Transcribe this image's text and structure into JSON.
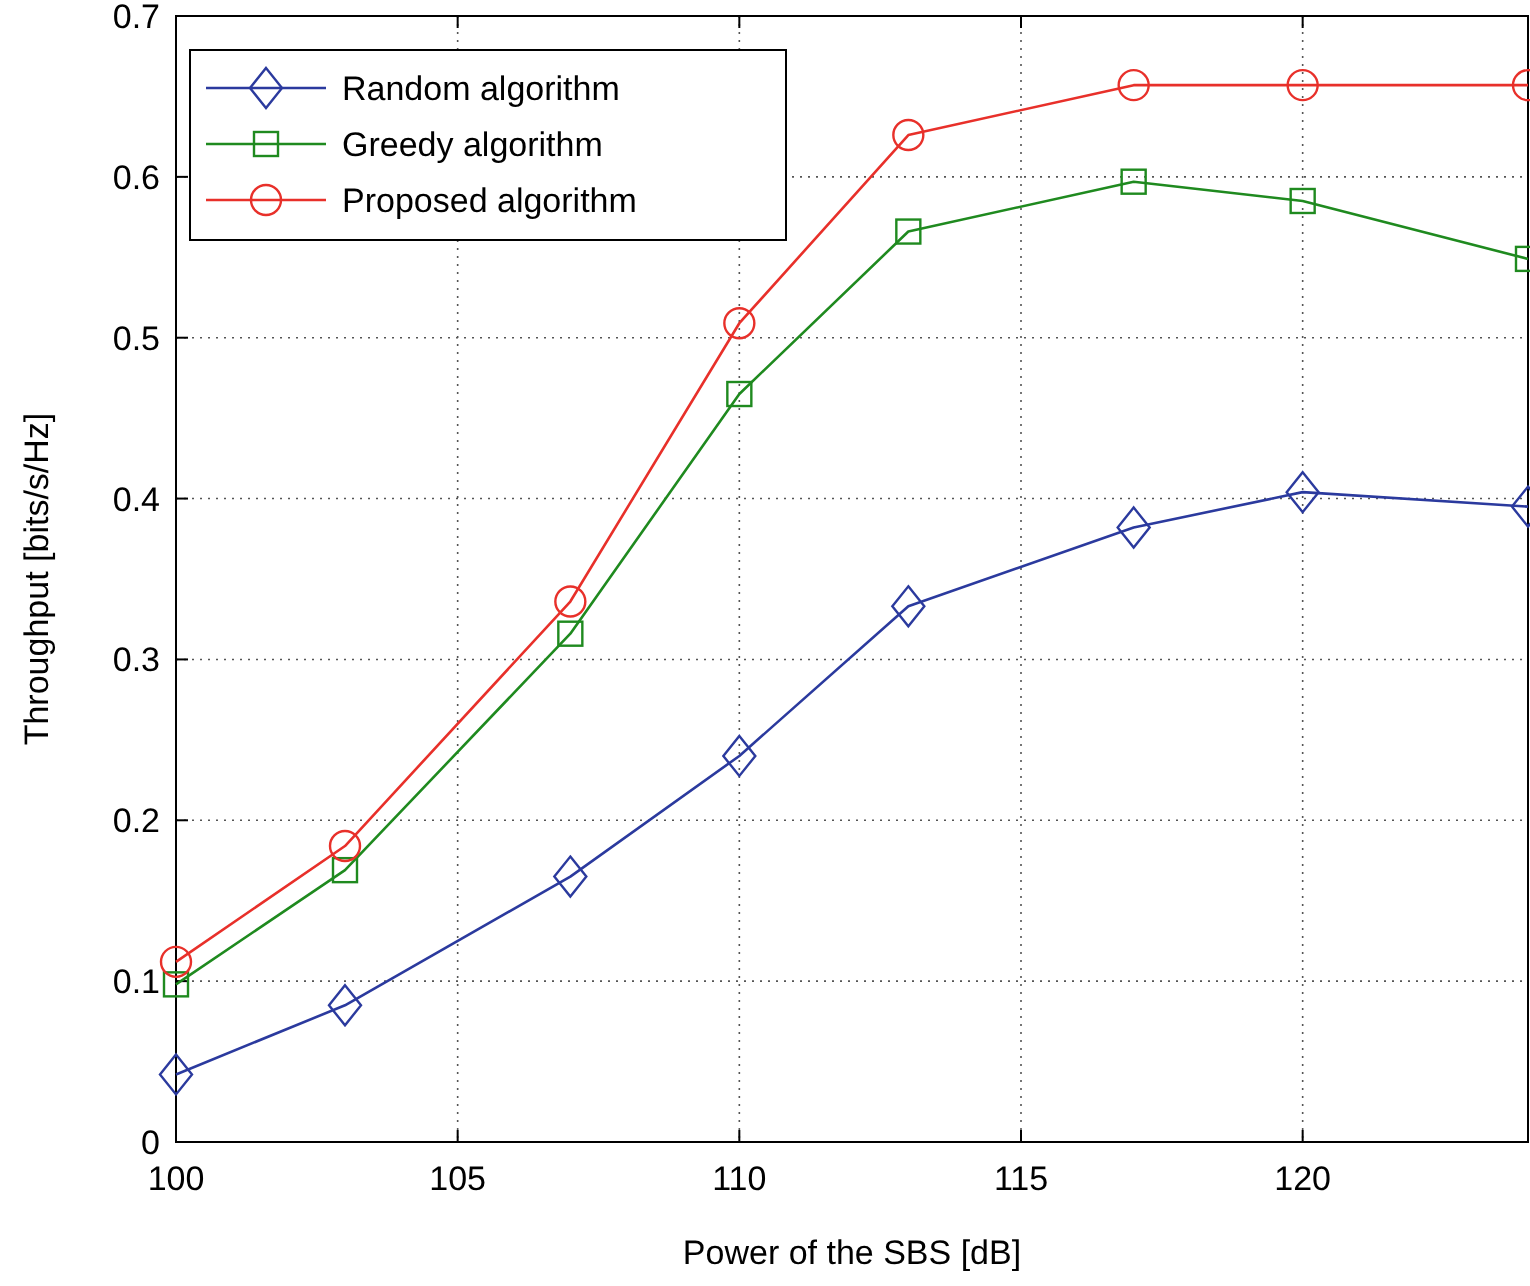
{
  "chart_data": {
    "type": "line",
    "xlabel": "Power of the SBS [dB]",
    "ylabel": "Throughput [bits/s/Hz]",
    "x": [
      100,
      103,
      107,
      110,
      113,
      117,
      120,
      124
    ],
    "xlim": [
      100,
      124
    ],
    "xticks": [
      100,
      105,
      110,
      115,
      120
    ],
    "ylim": [
      0,
      0.7
    ],
    "yticks": [
      0,
      0.1,
      0.2,
      0.3,
      0.4,
      0.5,
      0.6,
      0.7
    ],
    "grid": true,
    "legend": "top left",
    "line_style": "solid",
    "series": [
      {
        "name": "Random algorithm",
        "color": "#2b3a9e",
        "marker": "diamond",
        "values": [
          0.042,
          0.085,
          0.165,
          0.24,
          0.333,
          0.382,
          0.404,
          0.395
        ]
      },
      {
        "name": "Greedy algorithm",
        "color": "#1f8a1f",
        "marker": "square",
        "values": [
          0.098,
          0.169,
          0.316,
          0.465,
          0.566,
          0.597,
          0.585,
          0.549
        ]
      },
      {
        "name": "Proposed algorithm",
        "color": "#e8302a",
        "marker": "circle",
        "values": [
          0.112,
          0.184,
          0.336,
          0.509,
          0.626,
          0.657,
          0.657,
          0.657
        ]
      }
    ]
  }
}
